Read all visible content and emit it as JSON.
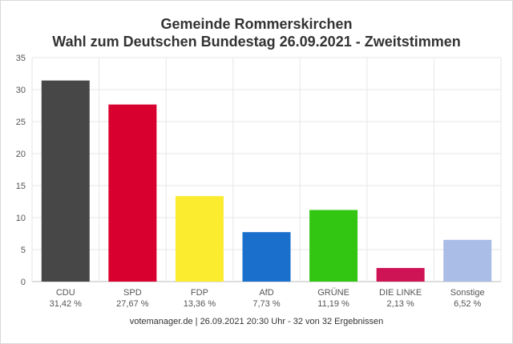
{
  "chart_data": {
    "type": "bar",
    "title": "Gemeinde Rommerskirchen",
    "subtitle": "Wahl zum Deutschen Bundestag 26.09.2021  - Zweitstimmen",
    "categories": [
      "CDU",
      "SPD",
      "FDP",
      "AfD",
      "GRÜNE",
      "DIE LINKE",
      "Sonstige"
    ],
    "values": [
      31.42,
      27.67,
      13.36,
      7.73,
      11.19,
      2.13,
      6.52
    ],
    "value_labels": [
      "31,42 %",
      "27,67 %",
      "13,36 %",
      "7,73 %",
      "11,19 %",
      "2,13 %",
      "6,52 %"
    ],
    "colors": [
      "#474747",
      "#d8002f",
      "#fbec30",
      "#1a6fcc",
      "#32c612",
      "#cf1455",
      "#a9bde6"
    ],
    "yticks": [
      "0",
      "5",
      "10",
      "15",
      "20",
      "25",
      "30",
      "35"
    ],
    "ylim": [
      0,
      35
    ],
    "grid": true,
    "footer": "votemanager.de | 26.09.2021 20:30 Uhr - 32 von 32 Ergebnissen"
  }
}
